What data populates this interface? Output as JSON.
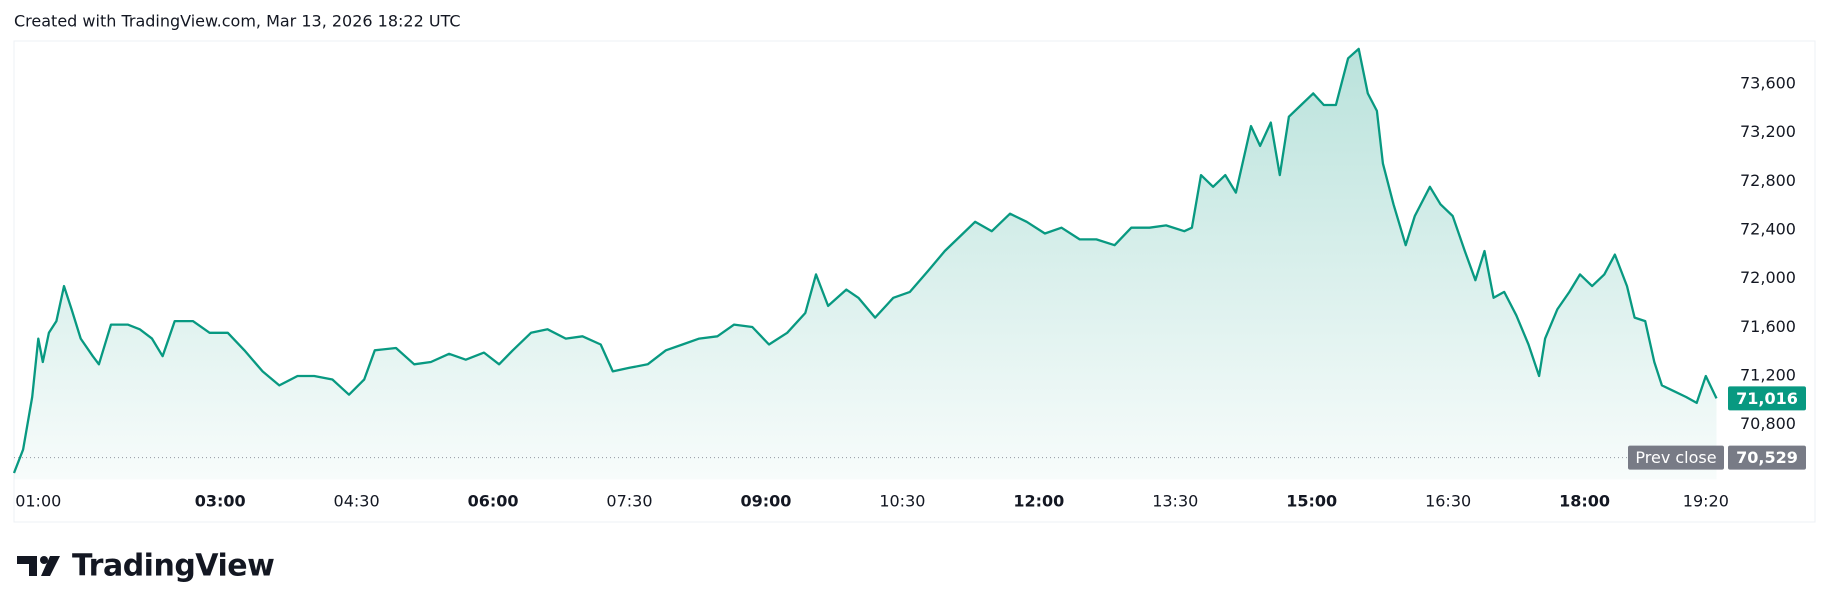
{
  "header": "Created with TradingView.com, Mar 13, 2026 18:22 UTC",
  "brand": "TradingView",
  "chart_data": {
    "type": "area",
    "series": [
      {
        "color": "#089981",
        "x": [
          44,
          50,
          56,
          60,
          63,
          67,
          72,
          77,
          82,
          88,
          96,
          100,
          108,
          119,
          127,
          135,
          142,
          150,
          162,
          173,
          185,
          196,
          208,
          219,
          231,
          242,
          254,
          265,
          275,
          282,
          296,
          308,
          319,
          331,
          342,
          354,
          364,
          373,
          385,
          396,
          408,
          419,
          431,
          439,
          450,
          462,
          474,
          485,
          496,
          508,
          519,
          531,
          542,
          554,
          566,
          573,
          581,
          593,
          601,
          612,
          624,
          635,
          647,
          658,
          670,
          678,
          689,
          701,
          712,
          724,
          735,
          747,
          758,
          770,
          781,
          793,
          804,
          816,
          821,
          827,
          835,
          843,
          850,
          860,
          866,
          873,
          879,
          885,
          893,
          901,
          908,
          916,
          924,
          931,
          937,
          943,
          947,
          954,
          962,
          968,
          978,
          985,
          993,
          1001,
          1008,
          1014,
          1020,
          1027,
          1035,
          1043,
          1050,
          1054,
          1062,
          1070,
          1077,
          1085,
          1093,
          1100,
          1108,
          1113,
          1120,
          1126,
          1131,
          1139,
          1147,
          1154,
          1160,
          1167
        ],
        "values": [
          70403,
          70595,
          71027,
          71507,
          71315,
          71555,
          71651,
          71939,
          71747,
          71507,
          71363,
          71296,
          71622,
          71622,
          71584,
          71507,
          71363,
          71651,
          71651,
          71555,
          71555,
          71411,
          71238,
          71123,
          71200,
          71200,
          71171,
          71046,
          71171,
          71411,
          71430,
          71296,
          71315,
          71382,
          71334,
          71392,
          71296,
          71411,
          71555,
          71584,
          71507,
          71526,
          71459,
          71238,
          71267,
          71296,
          71411,
          71459,
          71507,
          71526,
          71622,
          71603,
          71459,
          71555,
          71718,
          72035,
          71776,
          71910,
          71843,
          71680,
          71843,
          71891,
          72064,
          72227,
          72371,
          72467,
          72390,
          72534,
          72467,
          72371,
          72419,
          72323,
          72323,
          72275,
          72419,
          72419,
          72438,
          72390,
          72419,
          72851,
          72755,
          72851,
          72707,
          73254,
          73091,
          73283,
          72851,
          73331,
          73427,
          73523,
          73427,
          73427,
          73811,
          73888,
          73523,
          73379,
          72947,
          72611,
          72275,
          72515,
          72755,
          72611,
          72515,
          72227,
          71987,
          72227,
          71843,
          71891,
          71699,
          71459,
          71200,
          71507,
          71747,
          71891,
          72035,
          71939,
          72035,
          72198,
          71939,
          71680,
          71651,
          71315,
          71123,
          71075,
          71027,
          70979,
          71200,
          71016
        ]
      }
    ],
    "xlim": [
      44,
      1170
    ],
    "xticks": [
      {
        "value": 60,
        "label": "01:00"
      },
      {
        "value": 180,
        "label": "03:00"
      },
      {
        "value": 270,
        "label": "04:30"
      },
      {
        "value": 360,
        "label": "06:00"
      },
      {
        "value": 450,
        "label": "07:30"
      },
      {
        "value": 540,
        "label": "09:00"
      },
      {
        "value": 630,
        "label": "10:30"
      },
      {
        "value": 720,
        "label": "12:00"
      },
      {
        "value": 810,
        "label": "13:30"
      },
      {
        "value": 900,
        "label": "15:00"
      },
      {
        "value": 990,
        "label": "16:30"
      },
      {
        "value": 1080,
        "label": "18:00"
      },
      {
        "value": 1160,
        "label": "19:20"
      }
    ],
    "ylim": [
      70350,
      73950
    ],
    "yticks": [
      {
        "value": 70800,
        "label": "70,800"
      },
      {
        "value": 71200,
        "label": "71,200"
      },
      {
        "value": 71600,
        "label": "71,600"
      },
      {
        "value": 72000,
        "label": "72,000"
      },
      {
        "value": 72400,
        "label": "72,400"
      },
      {
        "value": 72800,
        "label": "72,800"
      },
      {
        "value": 73200,
        "label": "73,200"
      },
      {
        "value": 73600,
        "label": "73,600"
      }
    ],
    "last_price": {
      "value": 71016,
      "label": "71,016"
    },
    "prev_close": {
      "name": "Prev close",
      "value": 70529,
      "label": "70,529"
    }
  }
}
